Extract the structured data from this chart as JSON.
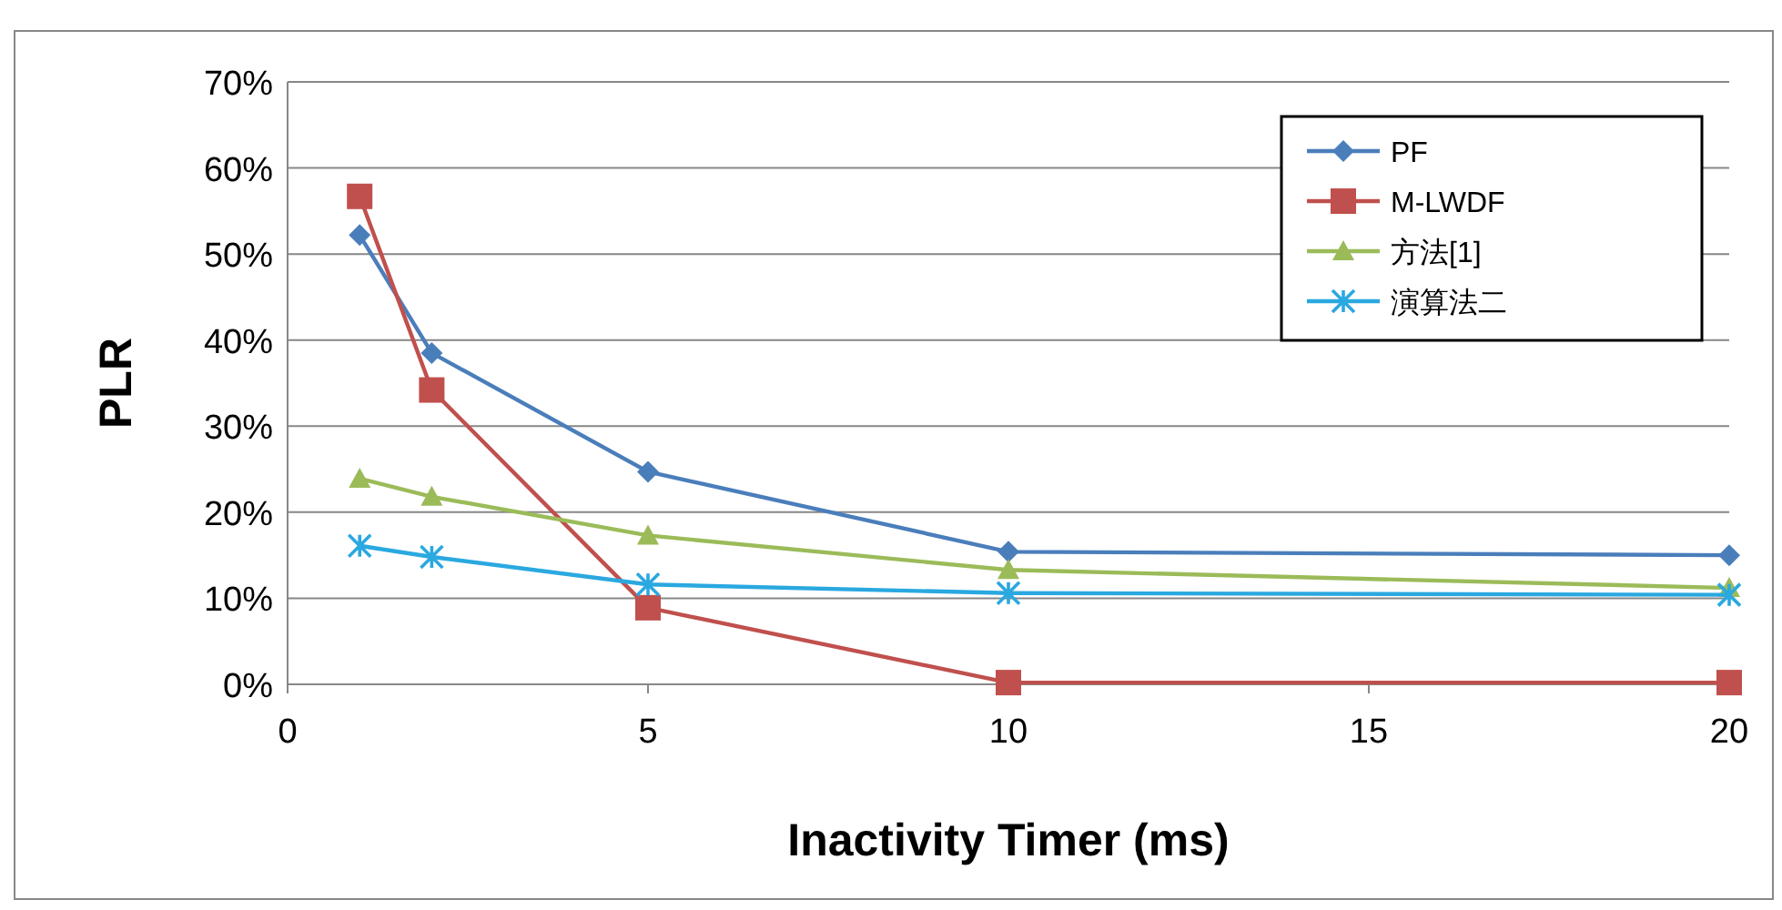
{
  "chart_data": {
    "type": "line",
    "xlabel": "Inactivity Timer (ms)",
    "ylabel": "PLR",
    "x": [
      1,
      2,
      5,
      10,
      20
    ],
    "xlim": [
      0,
      20
    ],
    "xticks": [
      0,
      5,
      10,
      15,
      20
    ],
    "ylim": [
      0,
      70
    ],
    "yticks": [
      {
        "value": 0,
        "label": "0%"
      },
      {
        "value": 10,
        "label": "10%"
      },
      {
        "value": 20,
        "label": "20%"
      },
      {
        "value": 30,
        "label": "30%"
      },
      {
        "value": 40,
        "label": "40%"
      },
      {
        "value": 50,
        "label": "50%"
      },
      {
        "value": 60,
        "label": "60%"
      },
      {
        "value": 70,
        "label": "70%"
      }
    ],
    "grid": "y",
    "legend": "top right",
    "series": [
      {
        "name": "PF",
        "color": "#4a7ebb",
        "marker": "diamond",
        "values": [
          52.2,
          38.5,
          24.7,
          15.4,
          15.0
        ]
      },
      {
        "name": "M-LWDF",
        "color": "#c0504d",
        "marker": "square",
        "values": [
          56.7,
          34.2,
          8.9,
          0.2,
          0.2
        ]
      },
      {
        "name": "方法[1]",
        "color": "#9bbb59",
        "marker": "triangle",
        "values": [
          23.9,
          21.8,
          17.3,
          13.3,
          11.2
        ]
      },
      {
        "name": "演算法二",
        "color": "#2aa8e0",
        "marker": "cross",
        "values": [
          16.1,
          14.8,
          11.6,
          10.6,
          10.4
        ]
      }
    ]
  }
}
